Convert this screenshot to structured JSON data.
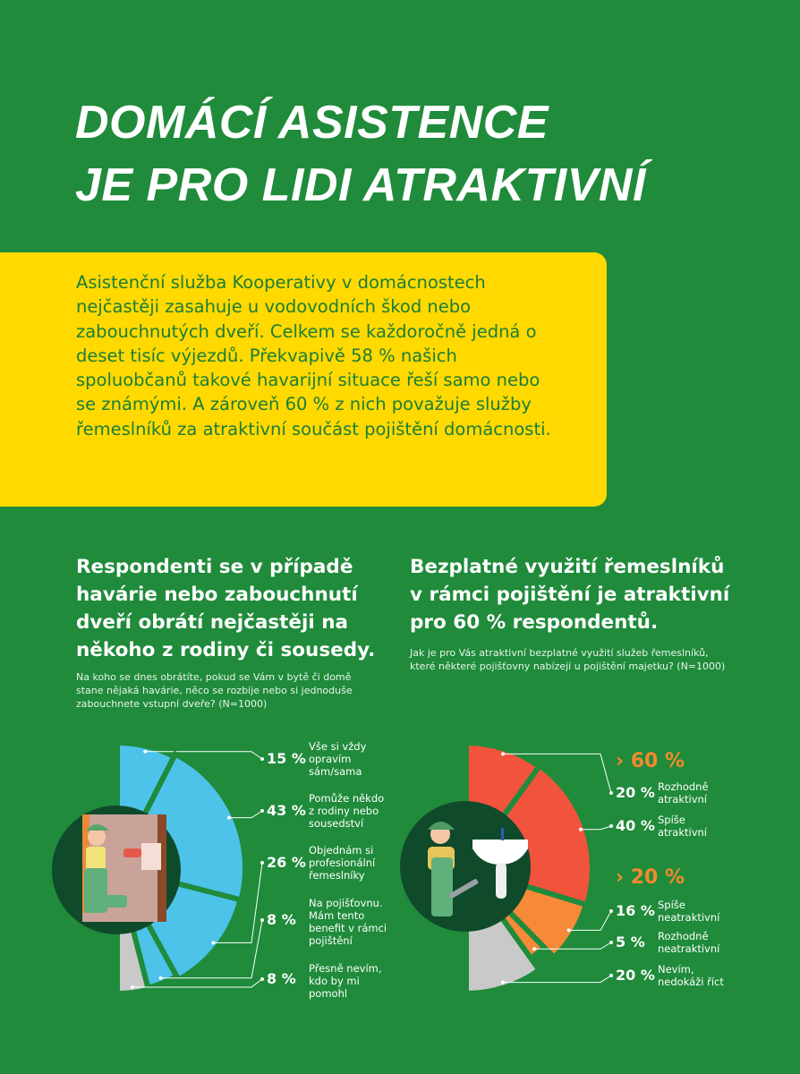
{
  "title": {
    "line1": "DOMÁCÍ ASISTENCE",
    "line2": "JE PRO LIDI ATRAKTIVNÍ"
  },
  "intro": "Asistenční služba Kooperativy v domácnostech nejčastěji zasahuje u vodovodních škod nebo zabouchnutých dveří. Celkem se každoročně jedná o deset tisíc výjezdů. Překvapivě 58 % našich spoluobčanů takové havarijní situace řeší samo nebo se známými. A zároveň 60 % z nich považuje služby řemeslníků za atraktivní součást pojištění domácnosti.",
  "colors": {
    "background": "#1f8b3b",
    "yellow": "#ffd900",
    "blue": "#4dc3ea",
    "red": "#f1533d",
    "orange": "#f68a39",
    "grey": "#c9c9c9",
    "illustration_bg": "#0f4a2b"
  },
  "chart_data": [
    {
      "type": "pie",
      "variant": "half-pie, clockwise from top",
      "title": "Respondenti se v případě havárie nebo zabouchnutí dveří obrátí nejčastěji na někoho z rodiny či sousedy.",
      "question": "Na koho se dnes obrátíte, pokud se Vám v bytě či domě stane nějaká havárie, něco se rozbije nebo si jednoduše zabouchnete vstupní dveře? (N=1000)",
      "slices": [
        {
          "label": "Vše si vždy opravím sám/sama",
          "value": 15,
          "display": "15 %",
          "color": "#4dc3ea"
        },
        {
          "label": "Pomůže někdo z rodiny nebo sousedství",
          "value": 43,
          "display": "43 %",
          "color": "#4dc3ea"
        },
        {
          "label": "Objednám si profesionální řemeslníky",
          "value": 26,
          "display": "26 %",
          "color": "#4dc3ea"
        },
        {
          "label": "Na pojišťovnu. Mám tento benefit v rámci pojištění",
          "value": 8,
          "display": "8 %",
          "color": "#4dc3ea"
        },
        {
          "label": "Přesně nevím, kdo by mi pomohl",
          "value": 8,
          "display": "8 %",
          "color": "#c9c9c9"
        }
      ]
    },
    {
      "type": "pie",
      "variant": "half-pie, clockwise from top",
      "title": "Bezplatné využití řemeslníků v rámci pojištění je atraktivní pro 60 % respondentů.",
      "question": "Jak je pro Vás atraktivní bezplatné využití služeb řemeslníků, které některé pojišťovny nabízejí u pojištění majetku? (N=1000)",
      "groups": [
        {
          "display": "60 %",
          "prefix": "›"
        },
        {
          "display": "20 %",
          "prefix": "›"
        }
      ],
      "slices": [
        {
          "label": "Rozhodně atraktivní",
          "value": 20,
          "display": "20 %",
          "color": "#f1533d"
        },
        {
          "label": "Spíše atraktivní",
          "value": 40,
          "display": "40 %",
          "color": "#f1533d"
        },
        {
          "label": "Spíše neatraktivní",
          "value": 16,
          "display": "16 %",
          "color": "#f68a39"
        },
        {
          "label": "Rozhodně neatraktivní",
          "value": 5,
          "display": "5 %",
          "color": "#f68a39"
        },
        {
          "label": "Nevím, nedokáži říct",
          "value": 20,
          "display": "20 %",
          "color": "#c9c9c9"
        }
      ]
    }
  ]
}
